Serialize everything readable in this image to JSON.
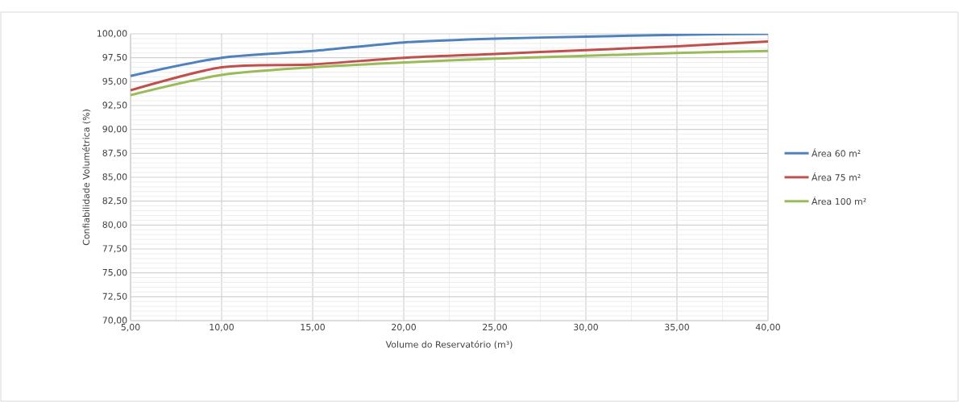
{
  "chart_data": {
    "type": "line",
    "xlabel": "Volume do Reservatório (m³)",
    "ylabel": "Confiabilidade Volumétrica (%)",
    "x": [
      5,
      10,
      15,
      20,
      25,
      30,
      35,
      40
    ],
    "series": [
      {
        "name": "Área 60 m²",
        "color": "#4f81bd",
        "values": [
          95.6,
          97.5,
          98.2,
          99.1,
          99.5,
          99.7,
          99.9,
          100.0
        ]
      },
      {
        "name": "Área 75 m²",
        "color": "#c0504d",
        "values": [
          94.1,
          96.5,
          96.8,
          97.5,
          97.9,
          98.3,
          98.7,
          99.2
        ]
      },
      {
        "name": "Área 100 m²",
        "color": "#9bbb59",
        "values": [
          93.6,
          95.7,
          96.5,
          97.0,
          97.4,
          97.7,
          98.0,
          98.2
        ]
      }
    ],
    "xlim": [
      5,
      40
    ],
    "ylim": [
      70,
      100
    ],
    "xticks": [
      {
        "value": 5,
        "label": "5,00"
      },
      {
        "value": 10,
        "label": "10,00"
      },
      {
        "value": 15,
        "label": "15,00"
      },
      {
        "value": 20,
        "label": "20,00"
      },
      {
        "value": 25,
        "label": "25,00"
      },
      {
        "value": 30,
        "label": "30,00"
      },
      {
        "value": 35,
        "label": "35,00"
      },
      {
        "value": 40,
        "label": "40,00"
      }
    ],
    "yticks": [
      {
        "value": 70,
        "label": "70,00"
      },
      {
        "value": 72.5,
        "label": "72,50"
      },
      {
        "value": 75,
        "label": "75,00"
      },
      {
        "value": 77.5,
        "label": "77,50"
      },
      {
        "value": 80,
        "label": "80,00"
      },
      {
        "value": 82.5,
        "label": "82,50"
      },
      {
        "value": 85,
        "label": "85,00"
      },
      {
        "value": 87.5,
        "label": "87,50"
      },
      {
        "value": 90,
        "label": "90,00"
      },
      {
        "value": 92.5,
        "label": "92,50"
      },
      {
        "value": 95,
        "label": "95,00"
      },
      {
        "value": 97.5,
        "label": "97,50"
      },
      {
        "value": 100,
        "label": "100,00"
      }
    ],
    "grid": true,
    "legend": "right",
    "marker": "none",
    "line_style": "solid"
  }
}
